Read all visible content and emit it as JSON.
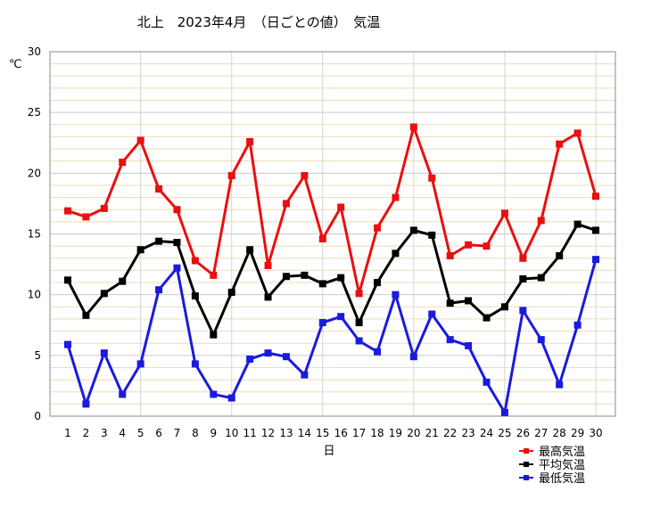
{
  "chart_data": {
    "type": "line",
    "title": "北上　2023年4月　（日ごとの値）　気温",
    "ylabel": "℃",
    "xlabel": "日",
    "ylim": [
      0,
      30
    ],
    "yticks": [
      0,
      5,
      10,
      15,
      20,
      25,
      30
    ],
    "x": [
      1,
      2,
      3,
      4,
      5,
      6,
      7,
      8,
      9,
      10,
      11,
      12,
      13,
      14,
      15,
      16,
      17,
      18,
      19,
      20,
      21,
      22,
      23,
      24,
      25,
      26,
      27,
      28,
      29,
      30
    ],
    "grid": true,
    "legend_position": "bottom-right",
    "series": [
      {
        "name": "最高気温",
        "color": "#e81010",
        "values": [
          16.9,
          16.4,
          17.1,
          20.9,
          22.7,
          18.7,
          17.0,
          12.8,
          11.6,
          19.8,
          22.6,
          12.4,
          17.5,
          19.8,
          14.6,
          17.2,
          10.1,
          15.5,
          18.0,
          23.8,
          19.6,
          13.2,
          14.1,
          14.0,
          16.7,
          13.0,
          16.1,
          22.4,
          23.3,
          18.1
        ]
      },
      {
        "name": "平均気温",
        "color": "#000000",
        "values": [
          11.2,
          8.3,
          10.1,
          11.1,
          13.7,
          14.4,
          14.3,
          9.9,
          6.7,
          10.2,
          13.7,
          9.8,
          11.5,
          11.6,
          10.9,
          11.4,
          7.7,
          11.0,
          13.4,
          15.3,
          14.9,
          9.3,
          9.5,
          8.1,
          9.0,
          11.3,
          11.4,
          13.2,
          15.8,
          15.3
        ]
      },
      {
        "name": "最低気温",
        "color": "#1a1ae0",
        "values": [
          5.9,
          1.0,
          5.2,
          1.8,
          4.3,
          10.4,
          12.2,
          4.3,
          1.8,
          1.5,
          4.7,
          5.2,
          4.9,
          3.4,
          7.7,
          8.2,
          6.2,
          5.3,
          10.0,
          4.9,
          8.4,
          6.3,
          5.8,
          2.8,
          0.3,
          8.7,
          6.3,
          2.6,
          7.5,
          12.9
        ]
      }
    ]
  }
}
